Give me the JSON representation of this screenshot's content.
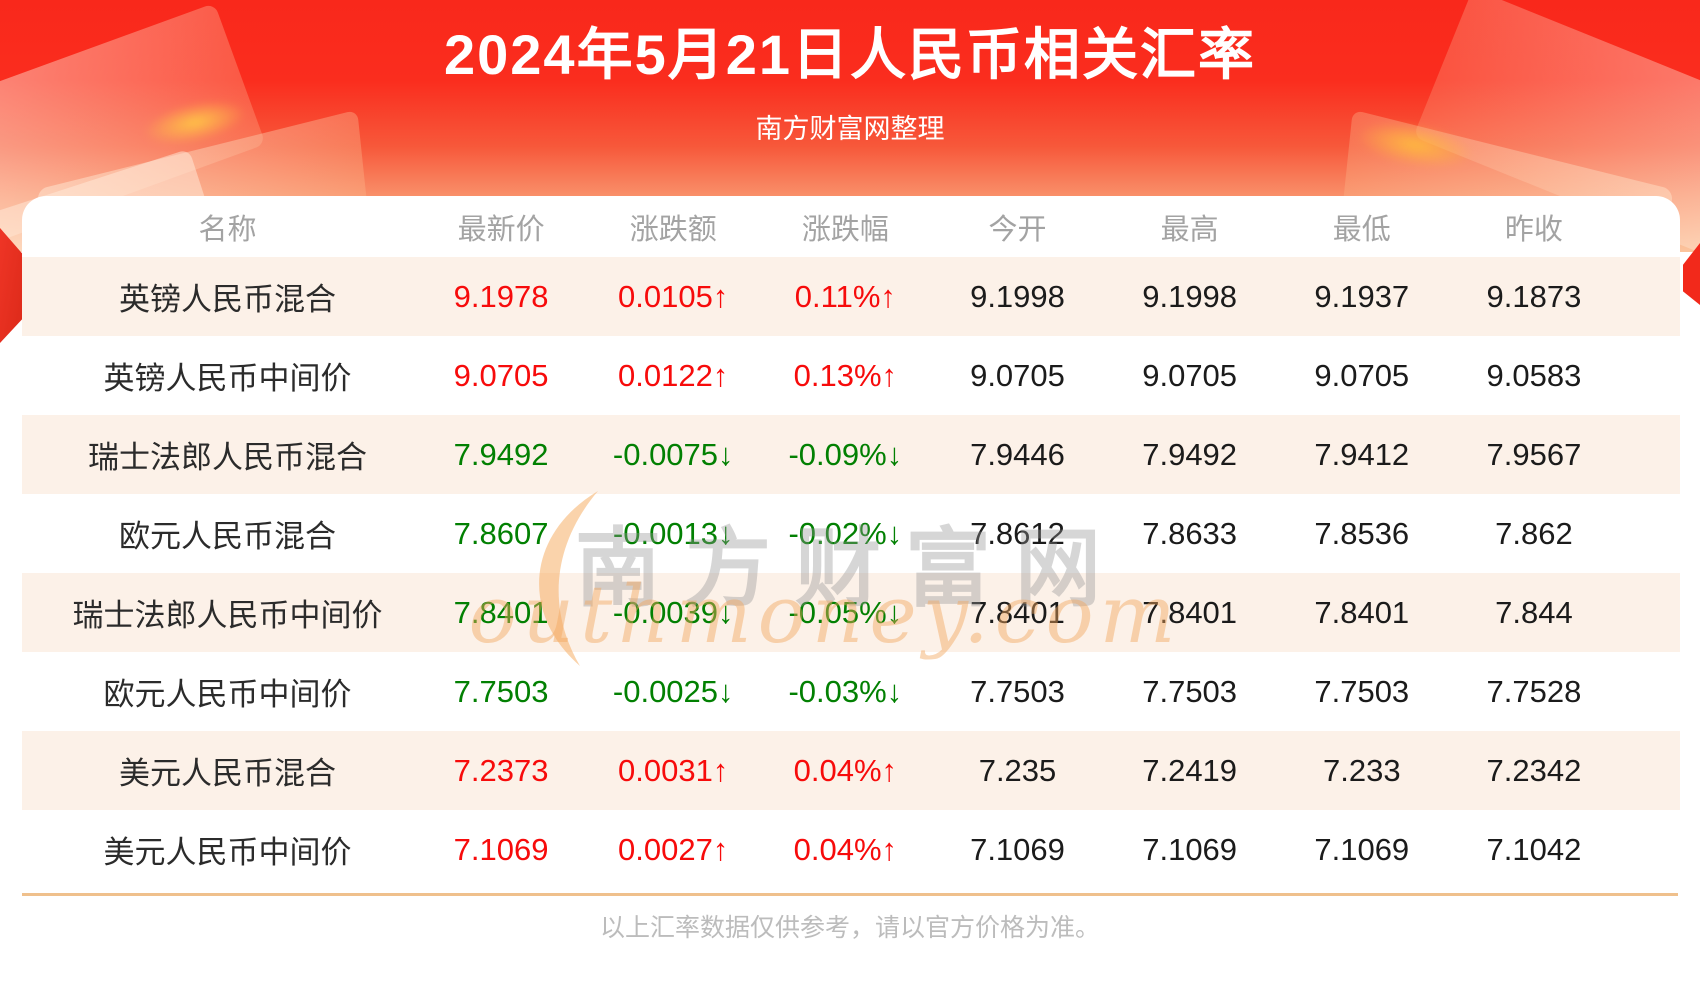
{
  "header": {
    "title": "2024年5月21日人民币相关汇率",
    "subtitle": "南方财富网整理"
  },
  "table": {
    "columns": [
      "名称",
      "最新价",
      "涨跌额",
      "涨跌幅",
      "今开",
      "最高",
      "最低",
      "昨收"
    ],
    "rows": [
      {
        "name": "英镑人民币混合",
        "latest": "9.1978",
        "change": "0.0105↑",
        "pct": "0.11%↑",
        "open": "9.1998",
        "high": "9.1998",
        "low": "9.1937",
        "prev": "9.1873",
        "dir": "up"
      },
      {
        "name": "英镑人民币中间价",
        "latest": "9.0705",
        "change": "0.0122↑",
        "pct": "0.13%↑",
        "open": "9.0705",
        "high": "9.0705",
        "low": "9.0705",
        "prev": "9.0583",
        "dir": "up"
      },
      {
        "name": "瑞士法郎人民币混合",
        "latest": "7.9492",
        "change": "-0.0075↓",
        "pct": "-0.09%↓",
        "open": "7.9446",
        "high": "7.9492",
        "low": "7.9412",
        "prev": "7.9567",
        "dir": "down"
      },
      {
        "name": "欧元人民币混合",
        "latest": "7.8607",
        "change": "-0.0013↓",
        "pct": "-0.02%↓",
        "open": "7.8612",
        "high": "7.8633",
        "low": "7.8536",
        "prev": "7.862",
        "dir": "down"
      },
      {
        "name": "瑞士法郎人民币中间价",
        "latest": "7.8401",
        "change": "-0.0039↓",
        "pct": "-0.05%↓",
        "open": "7.8401",
        "high": "7.8401",
        "low": "7.8401",
        "prev": "7.844",
        "dir": "down"
      },
      {
        "name": "欧元人民币中间价",
        "latest": "7.7503",
        "change": "-0.0025↓",
        "pct": "-0.03%↓",
        "open": "7.7503",
        "high": "7.7503",
        "low": "7.7503",
        "prev": "7.7528",
        "dir": "down"
      },
      {
        "name": "美元人民币混合",
        "latest": "7.2373",
        "change": "0.0031↑",
        "pct": "0.04%↑",
        "open": "7.235",
        "high": "7.2419",
        "low": "7.233",
        "prev": "7.2342",
        "dir": "up"
      },
      {
        "name": "美元人民币中间价",
        "latest": "7.1069",
        "change": "0.0027↑",
        "pct": "0.04%↑",
        "open": "7.1069",
        "high": "7.1069",
        "low": "7.1069",
        "prev": "7.1042",
        "dir": "up"
      }
    ]
  },
  "watermark": {
    "cjk": "南方财富网",
    "latin": "outhmoney.com"
  },
  "footer": {
    "note": "以上汇率数据仅供参考，请以官方价格为准。"
  },
  "colors": {
    "up_red": "#f70b0b",
    "down_green": "#028002",
    "banner_red": "#fa2d1e",
    "row_pink": "#fcf1e8",
    "divider_orange": "#efc08c"
  }
}
